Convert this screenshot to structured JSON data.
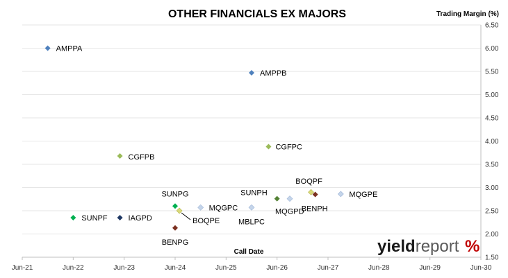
{
  "chart_data": {
    "type": "scatter",
    "title": "OTHER FINANCIALS EX MAJORS",
    "xlabel": "Call Date",
    "ylabel": "Trading Margin (%)",
    "x_ticks": [
      "Jun-21",
      "Jun-22",
      "Jun-23",
      "Jun-24",
      "Jun-25",
      "Jun-26",
      "Jun-27",
      "Jun-28",
      "Jun-29",
      "Jun-30"
    ],
    "y_ticks": [
      "1.50",
      "2.00",
      "2.50",
      "3.00",
      "3.50",
      "4.00",
      "4.50",
      "5.00",
      "5.50",
      "6.00",
      "6.50"
    ],
    "xlim": [
      "Jun-21",
      "Jun-30"
    ],
    "ylim": [
      1.5,
      6.5
    ],
    "y_axis_position": "right",
    "grid": "horizontal",
    "points": [
      {
        "label": "AMPPA",
        "x": "2021-12",
        "y": 6.0,
        "color": "#4f81bd"
      },
      {
        "label": "AMPPB",
        "x": "2025-12",
        "y": 5.47,
        "color": "#4f81bd"
      },
      {
        "label": "CGFPB",
        "x": "2023-05",
        "y": 3.68,
        "color": "#9bbb59"
      },
      {
        "label": "CGFPC",
        "x": "2026-04",
        "y": 3.88,
        "color": "#9bbb59"
      },
      {
        "label": "SUNPF",
        "x": "2022-06",
        "y": 2.35,
        "color": "#00b050"
      },
      {
        "label": "IAGPD",
        "x": "2023-05",
        "y": 2.35,
        "color": "#1f3864"
      },
      {
        "label": "SUNPG",
        "x": "2024-06",
        "y": 2.6,
        "color": "#00b050"
      },
      {
        "label": "BOQPE",
        "x": "2024-07",
        "y": 2.5,
        "color": "#d9d97a"
      },
      {
        "label": "MQGPC",
        "x": "2024-12",
        "y": 2.57,
        "color": "#c5d5ea"
      },
      {
        "label": "BENPG",
        "x": "2024-06",
        "y": 2.13,
        "color": "#7b3020"
      },
      {
        "label": "SUNPH",
        "x": "2026-06",
        "y": 2.76,
        "color": "#548235"
      },
      {
        "label": "MBLPC",
        "x": "2025-12",
        "y": 2.57,
        "color": "#c5d5ea"
      },
      {
        "label": "MQGPD",
        "x": "2026-09",
        "y": 2.76,
        "color": "#c5d5ea"
      },
      {
        "label": "BOQPF",
        "x": "2027-02",
        "y": 2.9,
        "color": "#d9d97a"
      },
      {
        "label": "BENPH",
        "x": "2027-03",
        "y": 2.85,
        "color": "#7b3020"
      },
      {
        "label": "MQGPE",
        "x": "2027-09",
        "y": 2.86,
        "color": "#c5d5ea"
      }
    ]
  },
  "brand": {
    "name_part1": "yield",
    "name_part2": "report",
    "symbol": "%",
    "symbol_color": "#c00000"
  }
}
